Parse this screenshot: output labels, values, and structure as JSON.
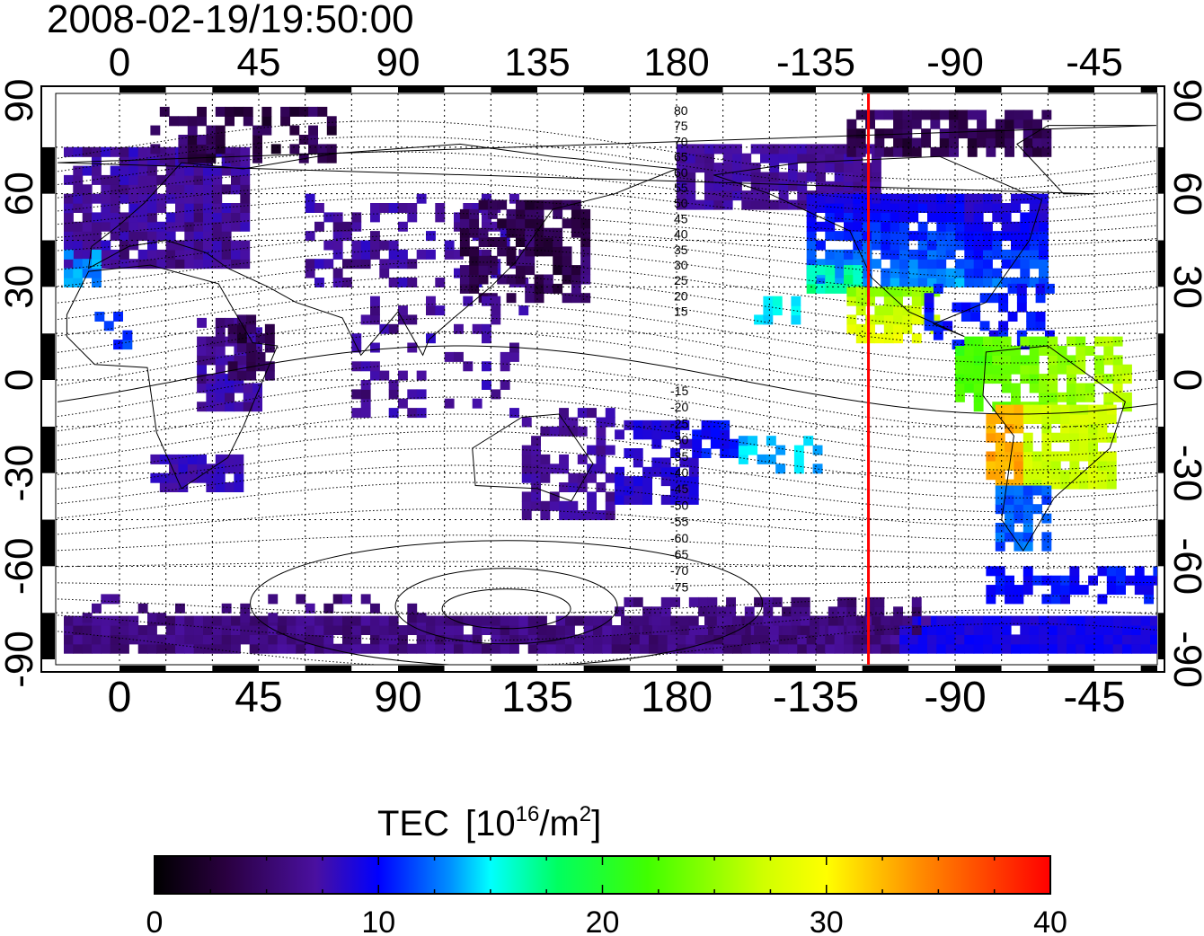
{
  "timestamp": "2008-02-19/19:50:00",
  "map": {
    "lon_ticks": [
      "0",
      "45",
      "90",
      "135",
      "180",
      "-135",
      "-90",
      "-45"
    ],
    "lat_ticks": [
      "90",
      "60",
      "30",
      "0",
      "-30",
      "-60",
      "-90"
    ],
    "contour_labels_north": [
      "80",
      "75",
      "70",
      "65",
      "60",
      "55",
      "50",
      "45",
      "40",
      "35",
      "30",
      "25",
      "20",
      "15"
    ],
    "contour_labels_south": [
      "-15",
      "-20",
      "-25",
      "-30",
      "-35",
      "-40",
      "-45",
      "-50",
      "-55",
      "-60",
      "-65",
      "-70",
      "-75"
    ],
    "terminator_color": "#ff0000",
    "terminator_lon": -118
  },
  "colorbar": {
    "title": "TEC",
    "unit_base": "10",
    "unit_exp": "16",
    "unit_rest": "/m",
    "unit_exp2": "2",
    "ticks": [
      "0",
      "10",
      "20",
      "30",
      "40"
    ],
    "min": 0,
    "max": 40,
    "colors": [
      "#000000",
      "#3a005a",
      "#5a10a0",
      "#0000ff",
      "#00a0ff",
      "#00ffff",
      "#00ff50",
      "#50ff00",
      "#ffff00",
      "#ff9000",
      "#ff0000"
    ]
  }
}
